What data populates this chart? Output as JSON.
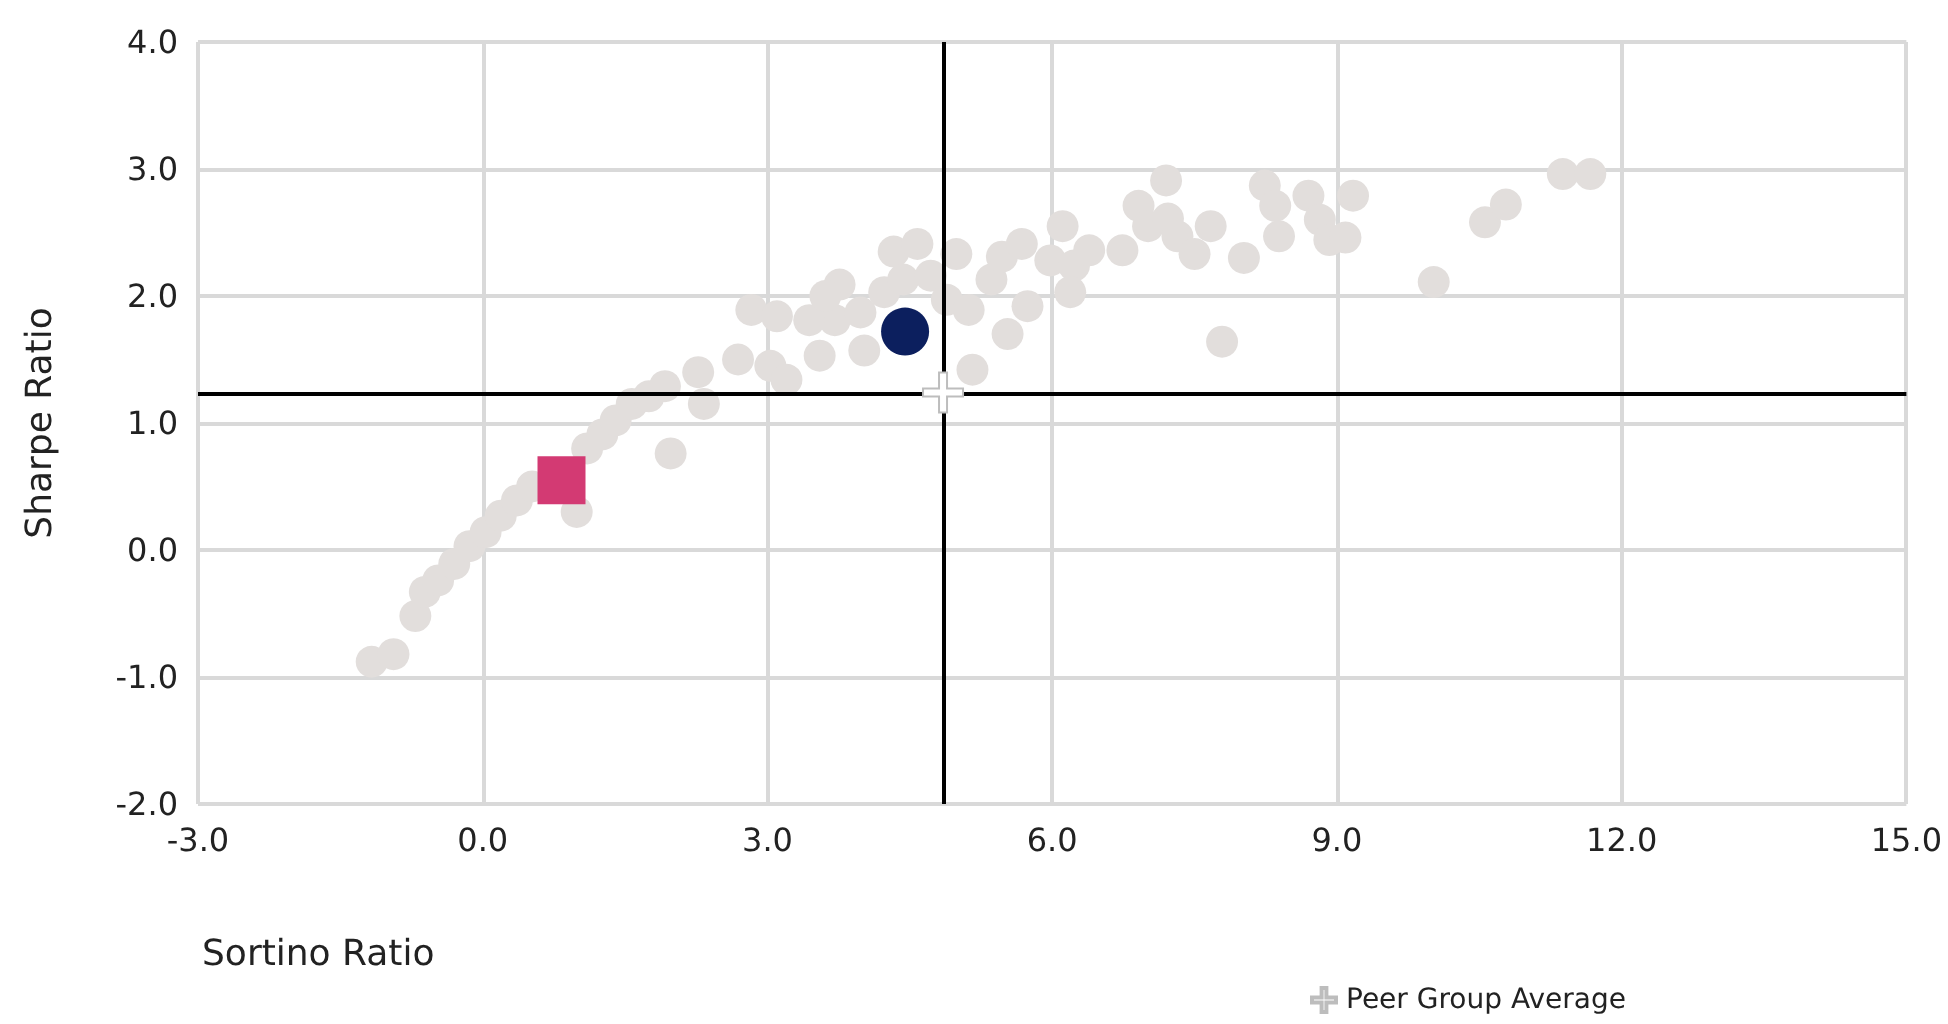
{
  "chart_data": {
    "type": "scatter",
    "xlabel": "Sortino Ratio",
    "ylabel": "Sharpe Ratio",
    "xlim": [
      -3,
      15
    ],
    "xticks": [
      {
        "value": -3,
        "label": "-3.0"
      },
      {
        "value": 0,
        "label": "0.0"
      },
      {
        "value": 3,
        "label": "3.0"
      },
      {
        "value": 6,
        "label": "6.0"
      },
      {
        "value": 9,
        "label": "9.0"
      },
      {
        "value": 12,
        "label": "12.0"
      },
      {
        "value": 15,
        "label": "15.0"
      }
    ],
    "ylim": [
      -2,
      4
    ],
    "yticks": [
      {
        "value": -2,
        "label": "-2.0"
      },
      {
        "value": -1,
        "label": "-1.0"
      },
      {
        "value": 0,
        "label": "0.0"
      },
      {
        "value": 1,
        "label": "1.0"
      },
      {
        "value": 2,
        "label": "2.0"
      },
      {
        "value": 3,
        "label": "3.0"
      },
      {
        "value": 4,
        "label": "4.0"
      }
    ],
    "grid": true,
    "legend": "bottom",
    "ref_lines": [
      {
        "axis": "x",
        "value": 4.85,
        "color": "#000000"
      },
      {
        "axis": "y",
        "value": 1.24,
        "color": "#000000"
      }
    ],
    "series": [
      {
        "color": "#e2dedc",
        "marker": "circle",
        "x": [
          -1.17,
          -0.94,
          -0.71,
          -0.61,
          -0.47,
          -0.3,
          -0.14,
          0.03,
          0.19,
          0.36,
          0.52,
          0.68,
          0.99,
          1.1,
          1.26,
          1.4,
          1.57,
          1.75,
          1.98,
          1.92,
          2.27,
          2.33,
          2.69,
          2.83,
          3.03,
          3.1,
          3.55,
          3.71,
          3.76,
          3.98,
          4.23,
          4.33,
          4.43,
          4.58,
          4.72,
          4.89,
          4.99,
          5.16,
          5.12,
          5.36,
          5.53,
          5.47,
          5.68,
          5.74,
          5.98,
          6.11,
          6.23,
          6.19,
          6.39,
          6.74,
          6.91,
          7.01,
          7.2,
          7.22,
          7.32,
          7.5,
          7.67,
          7.79,
          8.02,
          8.24,
          8.35,
          8.39,
          8.7,
          8.82,
          8.92,
          9.09,
          9.17,
          10.02,
          10.56,
          10.78,
          11.38,
          11.67,
          3.2,
          3.44,
          4.02,
          3.61
        ],
        "values": [
          -0.88,
          -0.82,
          -0.52,
          -0.33,
          -0.24,
          -0.11,
          0.03,
          0.14,
          0.27,
          0.39,
          0.5,
          null,
          0.3,
          0.8,
          0.91,
          1.02,
          1.15,
          1.21,
          0.76,
          1.29,
          1.4,
          1.15,
          1.5,
          1.89,
          1.45,
          1.84,
          1.53,
          1.81,
          2.09,
          1.87,
          2.03,
          2.35,
          2.13,
          2.41,
          2.16,
          1.97,
          2.33,
          1.42,
          1.89,
          2.13,
          1.7,
          2.31,
          2.41,
          1.92,
          2.28,
          2.55,
          2.24,
          2.03,
          2.36,
          2.36,
          2.71,
          2.55,
          2.91,
          2.61,
          2.47,
          2.33,
          2.55,
          1.64,
          2.3,
          2.87,
          2.71,
          2.47,
          2.79,
          2.6,
          2.44,
          2.46,
          2.79,
          2.11,
          2.58,
          2.72,
          2.96,
          2.96,
          1.34,
          1.81,
          1.57,
          2.0
        ]
      },
      {
        "color": "#0c1f5e",
        "marker": "circle",
        "x": [
          4.45
        ],
        "values": [
          1.72
        ]
      },
      {
        "color": "#d33a73",
        "marker": "square",
        "x": [
          0.83
        ],
        "values": [
          0.55
        ]
      },
      {
        "name": "Peer Group Average",
        "color": "#ffffff",
        "marker": "cross",
        "x": [
          4.85
        ],
        "values": [
          1.24
        ]
      }
    ]
  }
}
